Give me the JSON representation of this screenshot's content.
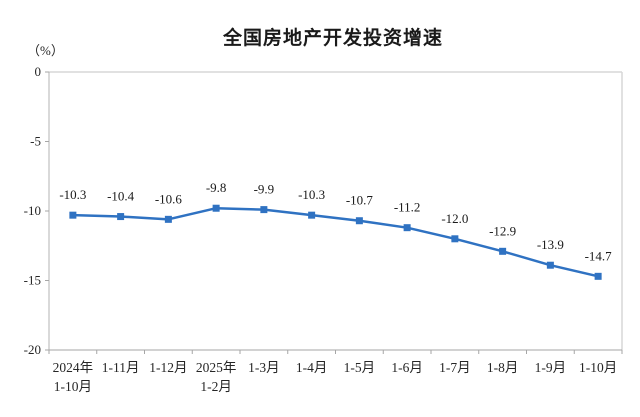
{
  "page": {
    "background": "#ffffff"
  },
  "chart_data": {
    "type": "line",
    "title": "全国房地产开发投资增速",
    "ylabel": "（%）",
    "categories": [
      "2024年\n1-10月",
      "1-11月",
      "1-12月",
      "2025年\n1-2月",
      "1-3月",
      "1-4月",
      "1-5月",
      "1-6月",
      "1-7月",
      "1-8月",
      "1-9月",
      "1-10月"
    ],
    "values": [
      -10.3,
      -10.4,
      -10.6,
      -9.8,
      -9.9,
      -10.3,
      -10.7,
      -11.2,
      -12.0,
      -12.9,
      -13.9,
      -14.7
    ],
    "data_labels": [
      "-10.3",
      "-10.4",
      "-10.6",
      "-9.8",
      "-9.9",
      "-10.3",
      "-10.7",
      "-11.2",
      "-12.0",
      "-12.9",
      "-13.9",
      "-14.7"
    ],
    "yticks": [
      0,
      -5,
      -10,
      -15,
      -20
    ],
    "ytick_labels": [
      "0",
      "-5",
      "-10",
      "-15",
      "-20"
    ],
    "ylim": [
      -20,
      0
    ],
    "grid": false,
    "legend": "none",
    "marker": "square",
    "line_color": "#2F72C2",
    "axis_color": "#A6A6A6",
    "border_color": "#D7D7D7",
    "y_axis_line_color": "#B3B3B3",
    "label_color": "#1a1a1a"
  }
}
